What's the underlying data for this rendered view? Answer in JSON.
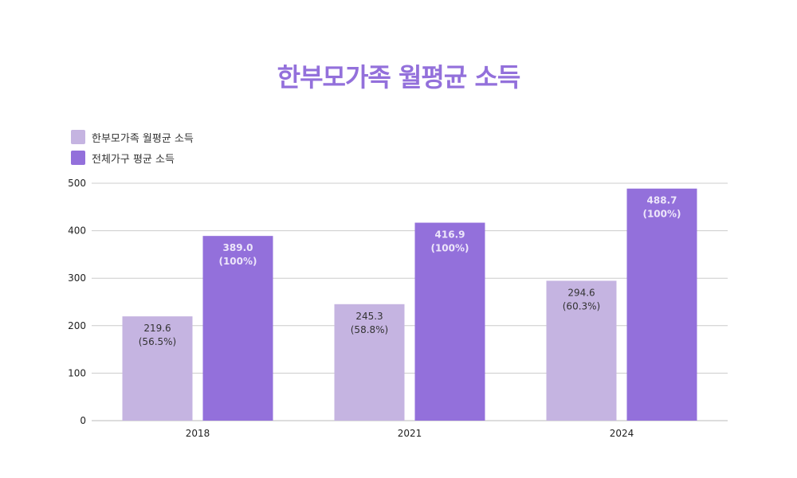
{
  "colors": {
    "title": "#9370DB",
    "single_parent": "#C5B4E1",
    "all_households": "#9370DB",
    "grid": "#CCCCCC"
  },
  "chart_data": {
    "type": "bar",
    "title": "한부모가족 월평균 소득",
    "categories": [
      "2018",
      "2021",
      "2024"
    ],
    "series": [
      {
        "name": "한부모가족 월평균 소득",
        "values": [
          219.6,
          245.3,
          294.6
        ],
        "labels": [
          "(56.5%)",
          "(58.8%)",
          "(60.3%)"
        ]
      },
      {
        "name": "전체가구 평균 소득",
        "values": [
          389.0,
          416.9,
          488.7
        ],
        "labels": [
          "(100%)",
          "(100%)",
          "(100%)"
        ]
      }
    ],
    "ylim": [
      0,
      500
    ],
    "yticks": [
      0,
      100,
      200,
      300,
      400,
      500
    ],
    "grid": true,
    "legend_position": "top-left"
  }
}
